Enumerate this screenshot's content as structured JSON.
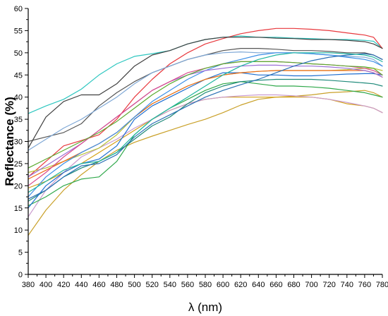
{
  "chart_data": {
    "type": "line",
    "xlabel": "λ (nm)",
    "ylabel": "Reflectance (%)",
    "xlim": [
      380,
      780
    ],
    "ylim": [
      0,
      60
    ],
    "xticks": [
      380,
      400,
      420,
      440,
      460,
      480,
      500,
      520,
      540,
      560,
      580,
      600,
      620,
      640,
      660,
      680,
      700,
      720,
      740,
      760,
      780
    ],
    "yticks": [
      0,
      5,
      10,
      15,
      20,
      25,
      30,
      35,
      40,
      45,
      50,
      55,
      60
    ],
    "grid": false,
    "legend": "none",
    "x": [
      380,
      400,
      420,
      440,
      460,
      480,
      500,
      520,
      540,
      560,
      580,
      600,
      620,
      640,
      660,
      680,
      700,
      720,
      740,
      760,
      770,
      780
    ],
    "series": [
      {
        "color": "#2ec7c0",
        "values": [
          36.3,
          38.0,
          39.5,
          41.8,
          45.0,
          47.5,
          49.2,
          49.8,
          50.5,
          52.0,
          53.0,
          53.5,
          53.8,
          53.5,
          53.5,
          53.3,
          53.2,
          53.0,
          53.0,
          52.8,
          52.6,
          51.0
        ]
      },
      {
        "color": "#e8383d",
        "values": [
          22.0,
          25.5,
          29.0,
          30.2,
          31.5,
          35.0,
          40.0,
          44.0,
          47.5,
          50.0,
          52.0,
          53.2,
          54.3,
          55.0,
          55.5,
          55.5,
          55.3,
          55.0,
          54.5,
          54.0,
          53.5,
          51.0
        ]
      },
      {
        "color": "#555555",
        "values": [
          30.0,
          31.0,
          32.0,
          34.0,
          38.0,
          41.0,
          43.5,
          45.5,
          47.0,
          48.5,
          49.5,
          50.5,
          51.0,
          51.0,
          50.8,
          50.5,
          50.5,
          50.3,
          50.0,
          50.0,
          49.5,
          48.5
        ]
      },
      {
        "color": "#404040",
        "values": [
          28.5,
          35.5,
          39.0,
          40.5,
          40.5,
          43.0,
          47.0,
          49.5,
          50.5,
          52.0,
          53.0,
          53.5,
          53.5,
          53.5,
          53.3,
          53.2,
          53.0,
          53.0,
          52.8,
          52.5,
          52.0,
          51.0
        ]
      },
      {
        "color": "#7fa8d6",
        "values": [
          28.0,
          30.5,
          33.0,
          35.0,
          37.5,
          40.0,
          43.0,
          45.5,
          47.0,
          48.5,
          49.5,
          50.0,
          50.2,
          50.0,
          50.0,
          50.0,
          49.8,
          49.5,
          49.2,
          49.0,
          48.5,
          47.0
        ]
      },
      {
        "color": "#c9a028",
        "values": [
          8.8,
          14.5,
          19.0,
          22.5,
          25.5,
          28.0,
          29.8,
          31.2,
          32.5,
          33.8,
          35.0,
          36.5,
          38.2,
          39.5,
          40.0,
          40.2,
          40.5,
          41.0,
          41.2,
          41.5,
          41.0,
          40.0
        ]
      },
      {
        "color": "#d4a017",
        "values": [
          19.5,
          21.0,
          23.0,
          25.0,
          27.5,
          30.0,
          32.5,
          35.0,
          37.0,
          38.5,
          39.5,
          40.0,
          40.0,
          40.0,
          40.0,
          40.0,
          40.0,
          39.5,
          38.5,
          38.0,
          37.5,
          36.5
        ]
      },
      {
        "color": "#c99acd",
        "values": [
          13.0,
          19.0,
          23.0,
          26.5,
          28.5,
          30.5,
          33.0,
          35.0,
          37.0,
          38.5,
          39.5,
          40.0,
          40.3,
          40.5,
          40.5,
          40.3,
          40.0,
          39.5,
          38.8,
          38.0,
          37.5,
          36.5
        ]
      },
      {
        "color": "#2fa84a",
        "values": [
          15.5,
          17.5,
          20.0,
          21.5,
          22.0,
          25.5,
          31.5,
          35.0,
          37.5,
          39.5,
          41.5,
          43.0,
          43.5,
          43.0,
          42.5,
          42.5,
          42.3,
          42.0,
          41.5,
          41.0,
          40.5,
          40.0
        ]
      },
      {
        "color": "#1f8a7a",
        "values": [
          16.5,
          19.0,
          22.0,
          24.0,
          25.5,
          27.5,
          30.5,
          33.5,
          35.5,
          38.5,
          41.0,
          42.5,
          43.5,
          43.8,
          44.0,
          44.0,
          44.0,
          43.8,
          43.5,
          43.2,
          43.0,
          42.5
        ]
      },
      {
        "color": "#1f6fd1",
        "values": [
          15.0,
          20.0,
          23.0,
          25.0,
          26.0,
          29.0,
          35.0,
          38.0,
          40.0,
          42.0,
          44.0,
          45.5,
          45.5,
          45.0,
          45.0,
          44.8,
          44.8,
          45.0,
          45.2,
          45.3,
          45.3,
          45.0
        ]
      },
      {
        "color": "#b8c238",
        "values": [
          23.0,
          24.0,
          25.5,
          27.0,
          28.5,
          31.5,
          35.5,
          38.5,
          40.5,
          42.5,
          44.0,
          45.0,
          45.5,
          45.8,
          46.0,
          46.0,
          46.0,
          46.0,
          46.2,
          46.5,
          46.5,
          46.0
        ]
      },
      {
        "color": "#ee6a1a",
        "values": [
          21.5,
          23.5,
          25.5,
          27.5,
          29.5,
          32.0,
          35.5,
          38.5,
          40.5,
          42.5,
          44.0,
          45.0,
          45.5,
          45.8,
          46.0,
          46.0,
          46.0,
          46.0,
          46.0,
          46.0,
          45.5,
          44.5
        ]
      },
      {
        "color": "#3a8ee6",
        "values": [
          17.5,
          22.0,
          25.0,
          27.5,
          29.5,
          32.0,
          35.5,
          39.0,
          41.5,
          44.0,
          46.0,
          47.5,
          48.5,
          49.5,
          50.0,
          50.0,
          49.8,
          49.5,
          49.0,
          48.5,
          48.0,
          47.0
        ]
      },
      {
        "color": "#9b6fd6",
        "values": [
          22.0,
          24.5,
          27.0,
          29.5,
          32.5,
          35.5,
          38.5,
          41.5,
          43.5,
          45.0,
          46.0,
          46.5,
          47.0,
          47.2,
          47.2,
          47.0,
          47.0,
          46.8,
          46.5,
          46.0,
          45.5,
          44.5
        ]
      },
      {
        "color": "#d94b8c",
        "values": [
          20.0,
          23.0,
          26.5,
          29.5,
          32.5,
          35.5,
          38.5,
          41.5,
          43.5,
          45.5,
          46.5,
          47.5,
          48.0,
          48.0,
          48.0,
          47.8,
          47.5,
          47.3,
          47.0,
          46.5,
          46.0,
          45.0
        ]
      },
      {
        "color": "#5aab2f",
        "values": [
          24.0,
          26.0,
          28.0,
          30.0,
          32.0,
          34.5,
          37.5,
          40.5,
          43.0,
          45.0,
          46.5,
          47.5,
          48.0,
          48.0,
          48.0,
          47.8,
          47.5,
          47.3,
          47.0,
          46.8,
          46.5,
          45.0
        ]
      },
      {
        "color": "#2a6fb5",
        "values": [
          17.0,
          19.0,
          22.0,
          24.5,
          25.0,
          27.0,
          31.0,
          34.0,
          36.0,
          38.0,
          40.0,
          41.5,
          42.8,
          44.0,
          45.5,
          47.0,
          48.2,
          49.0,
          49.5,
          49.8,
          49.5,
          48.5
        ]
      },
      {
        "color": "#1fb5a0",
        "values": [
          18.5,
          21.0,
          23.5,
          25.0,
          25.5,
          27.5,
          31.5,
          35.0,
          37.5,
          40.0,
          42.5,
          45.0,
          47.0,
          48.5,
          49.5,
          50.0,
          50.0,
          50.0,
          49.8,
          49.5,
          49.0,
          48.0
        ]
      }
    ]
  }
}
